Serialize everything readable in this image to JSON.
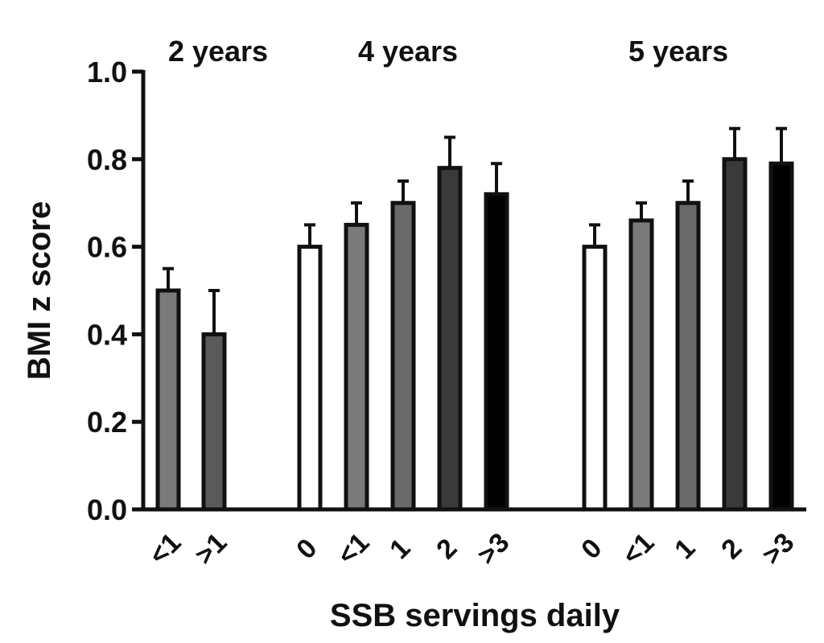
{
  "chart_data": {
    "type": "bar",
    "title": "",
    "xlabel": "SSB servings daily",
    "ylabel": "BMI z score",
    "ylim": [
      0,
      1.0
    ],
    "yticks": [
      "0.0",
      "0.2",
      "0.4",
      "0.6",
      "0.8",
      "1.0"
    ],
    "colors": {
      "0": "#ffffff",
      "<1": "#7a7a7a",
      ">1": "#5a5a5a",
      "1": "#6a6a6a",
      "2": "#3a3a3a",
      ">3": "#000000"
    },
    "groups": [
      {
        "name": "2 years",
        "categories": [
          "<1",
          ">1"
        ],
        "values": [
          0.5,
          0.4
        ],
        "errors": [
          0.05,
          0.1
        ]
      },
      {
        "name": "4 years",
        "categories": [
          "0",
          "<1",
          "1",
          "2",
          ">3"
        ],
        "values": [
          0.6,
          0.65,
          0.7,
          0.78,
          0.72
        ],
        "errors": [
          0.05,
          0.05,
          0.05,
          0.07,
          0.07
        ]
      },
      {
        "name": "5 years",
        "categories": [
          "0",
          "<1",
          "1",
          "2",
          ">3"
        ],
        "values": [
          0.6,
          0.66,
          0.7,
          0.8,
          0.79
        ],
        "errors": [
          0.05,
          0.04,
          0.05,
          0.07,
          0.08
        ]
      }
    ]
  }
}
